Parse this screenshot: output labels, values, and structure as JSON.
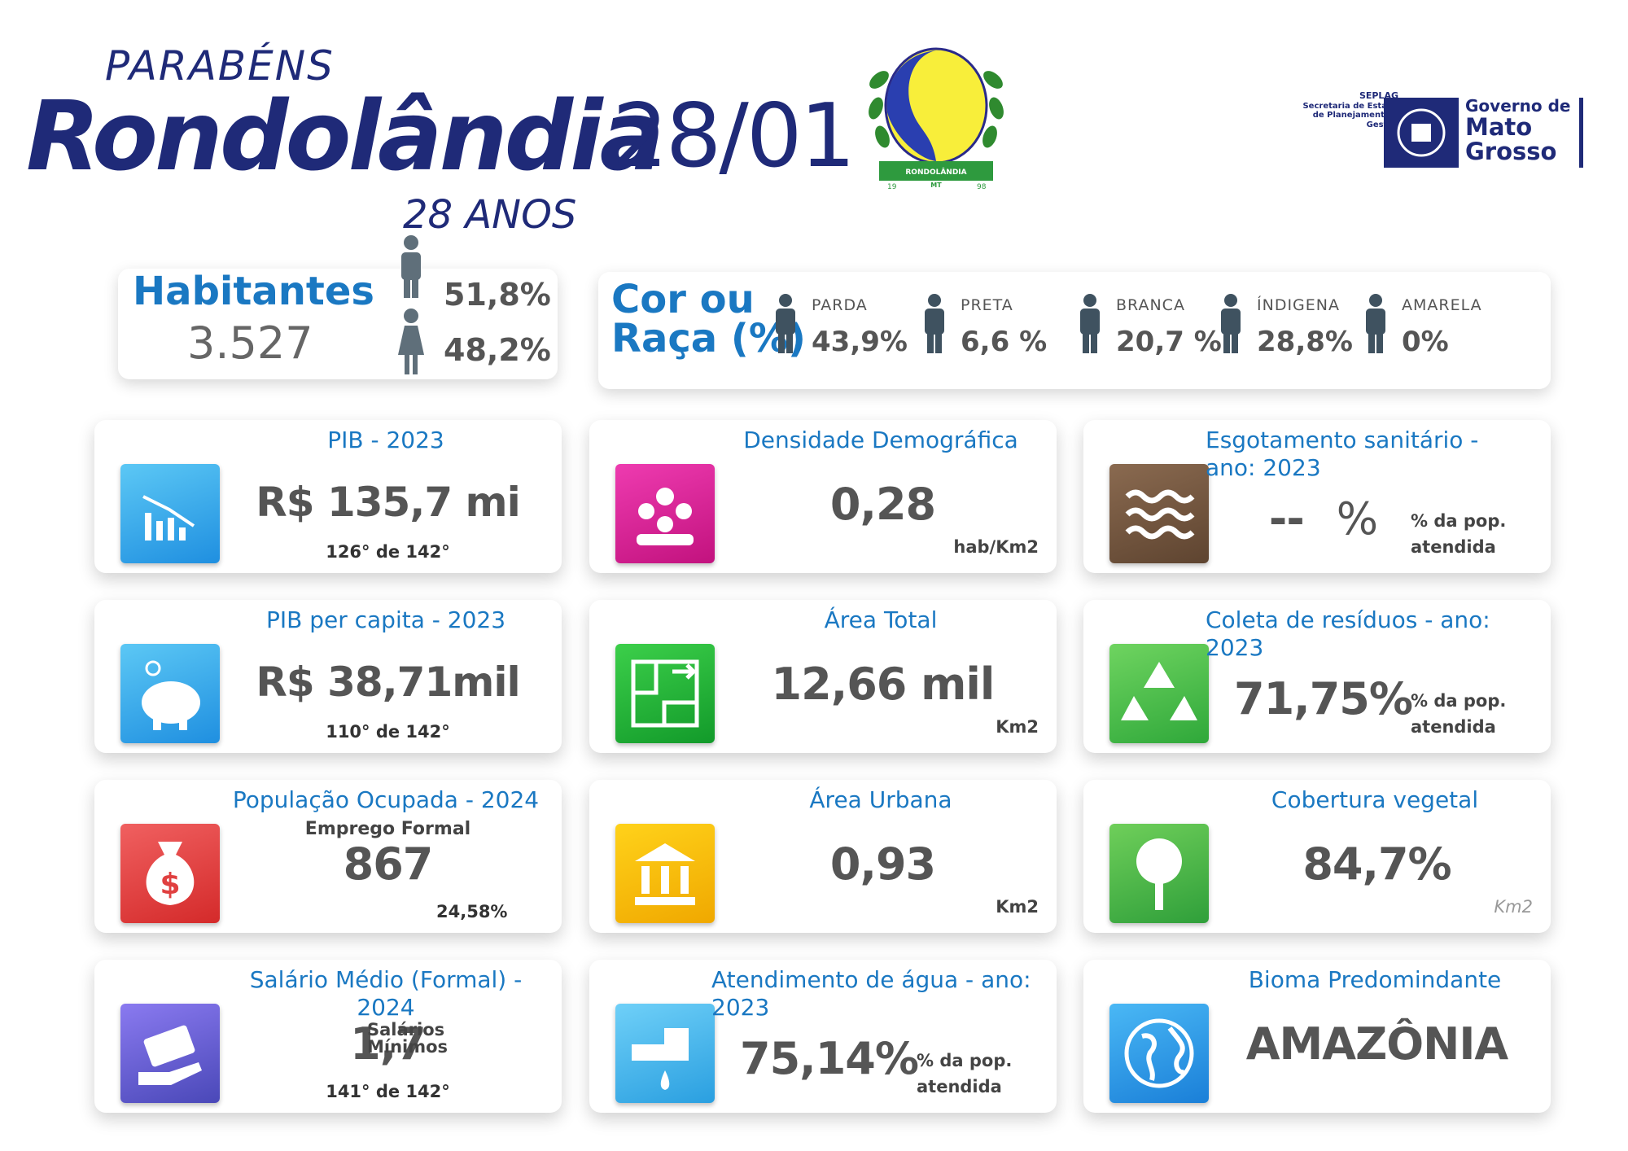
{
  "header": {
    "greeting": "PARABÉNS",
    "city": "Rondolândia",
    "date": "28/01",
    "age": "28 ANOS"
  },
  "logo": {
    "name": "RONDOLÂNDIA",
    "state": "MT",
    "year_left": "19",
    "year_right": "98"
  },
  "government": {
    "agency": "SEPLAG",
    "agency_full": "Secretaria de Estado de Planejamento e Gestão",
    "line1": "Governo de",
    "line2": "Mato",
    "line3": "Grosso"
  },
  "population": {
    "label": "Habitantes",
    "total": "3.527",
    "male": "51,8%",
    "female": "48,2%"
  },
  "race": {
    "label_line1": "Cor ou",
    "label_line2": "Raça (%)",
    "items": [
      {
        "name": "PARDA",
        "value": "43,9%"
      },
      {
        "name": "PRETA",
        "value": "6,6 %"
      },
      {
        "name": "BRANCA",
        "value": "20,7 %"
      },
      {
        "name": "ÍNDIGENA",
        "value": "28,8%"
      },
      {
        "name": "AMARELA",
        "value": "0%"
      }
    ]
  },
  "cards": [
    {
      "title": "PIB - 2023",
      "value": "R$ 135,7 mi",
      "rank": "126° de 142°"
    },
    {
      "title": "Densidade Demográfica",
      "value": "0,28",
      "unit": "hab/Km2"
    },
    {
      "title": "Esgotamento sanitário - ano: 2023",
      "value": "--",
      "symbol": "%",
      "unit": "% da pop. atendida"
    },
    {
      "title": "PIB per capita - 2023",
      "value": "R$ 38,71mil",
      "rank": "110° de 142°"
    },
    {
      "title": "Área Total",
      "value": "12,66 mil",
      "unit": "Km2"
    },
    {
      "title": "Coleta de resíduos - ano: 2023",
      "value": "71,75%",
      "unit": "% da pop. atendida"
    },
    {
      "title": "População Ocupada - 2024",
      "subtitle": "Emprego Formal",
      "value": "867",
      "note": "24,58%"
    },
    {
      "title": "Área Urbana",
      "value": "0,93",
      "unit": "Km2"
    },
    {
      "title": "Cobertura vegetal",
      "value": "84,7%",
      "unit": "Km2"
    },
    {
      "title": "Salário Médio (Formal) - 2024",
      "value": "1,7",
      "unit": "Salários Mínimos",
      "rank": "141° de 142°"
    },
    {
      "title": "Atendimento de água - ano: 2023",
      "value": "75,14%",
      "unit": "% da pop. atendida"
    },
    {
      "title": "Bioma Predomindante",
      "value": "AMAZÔNIA"
    }
  ]
}
